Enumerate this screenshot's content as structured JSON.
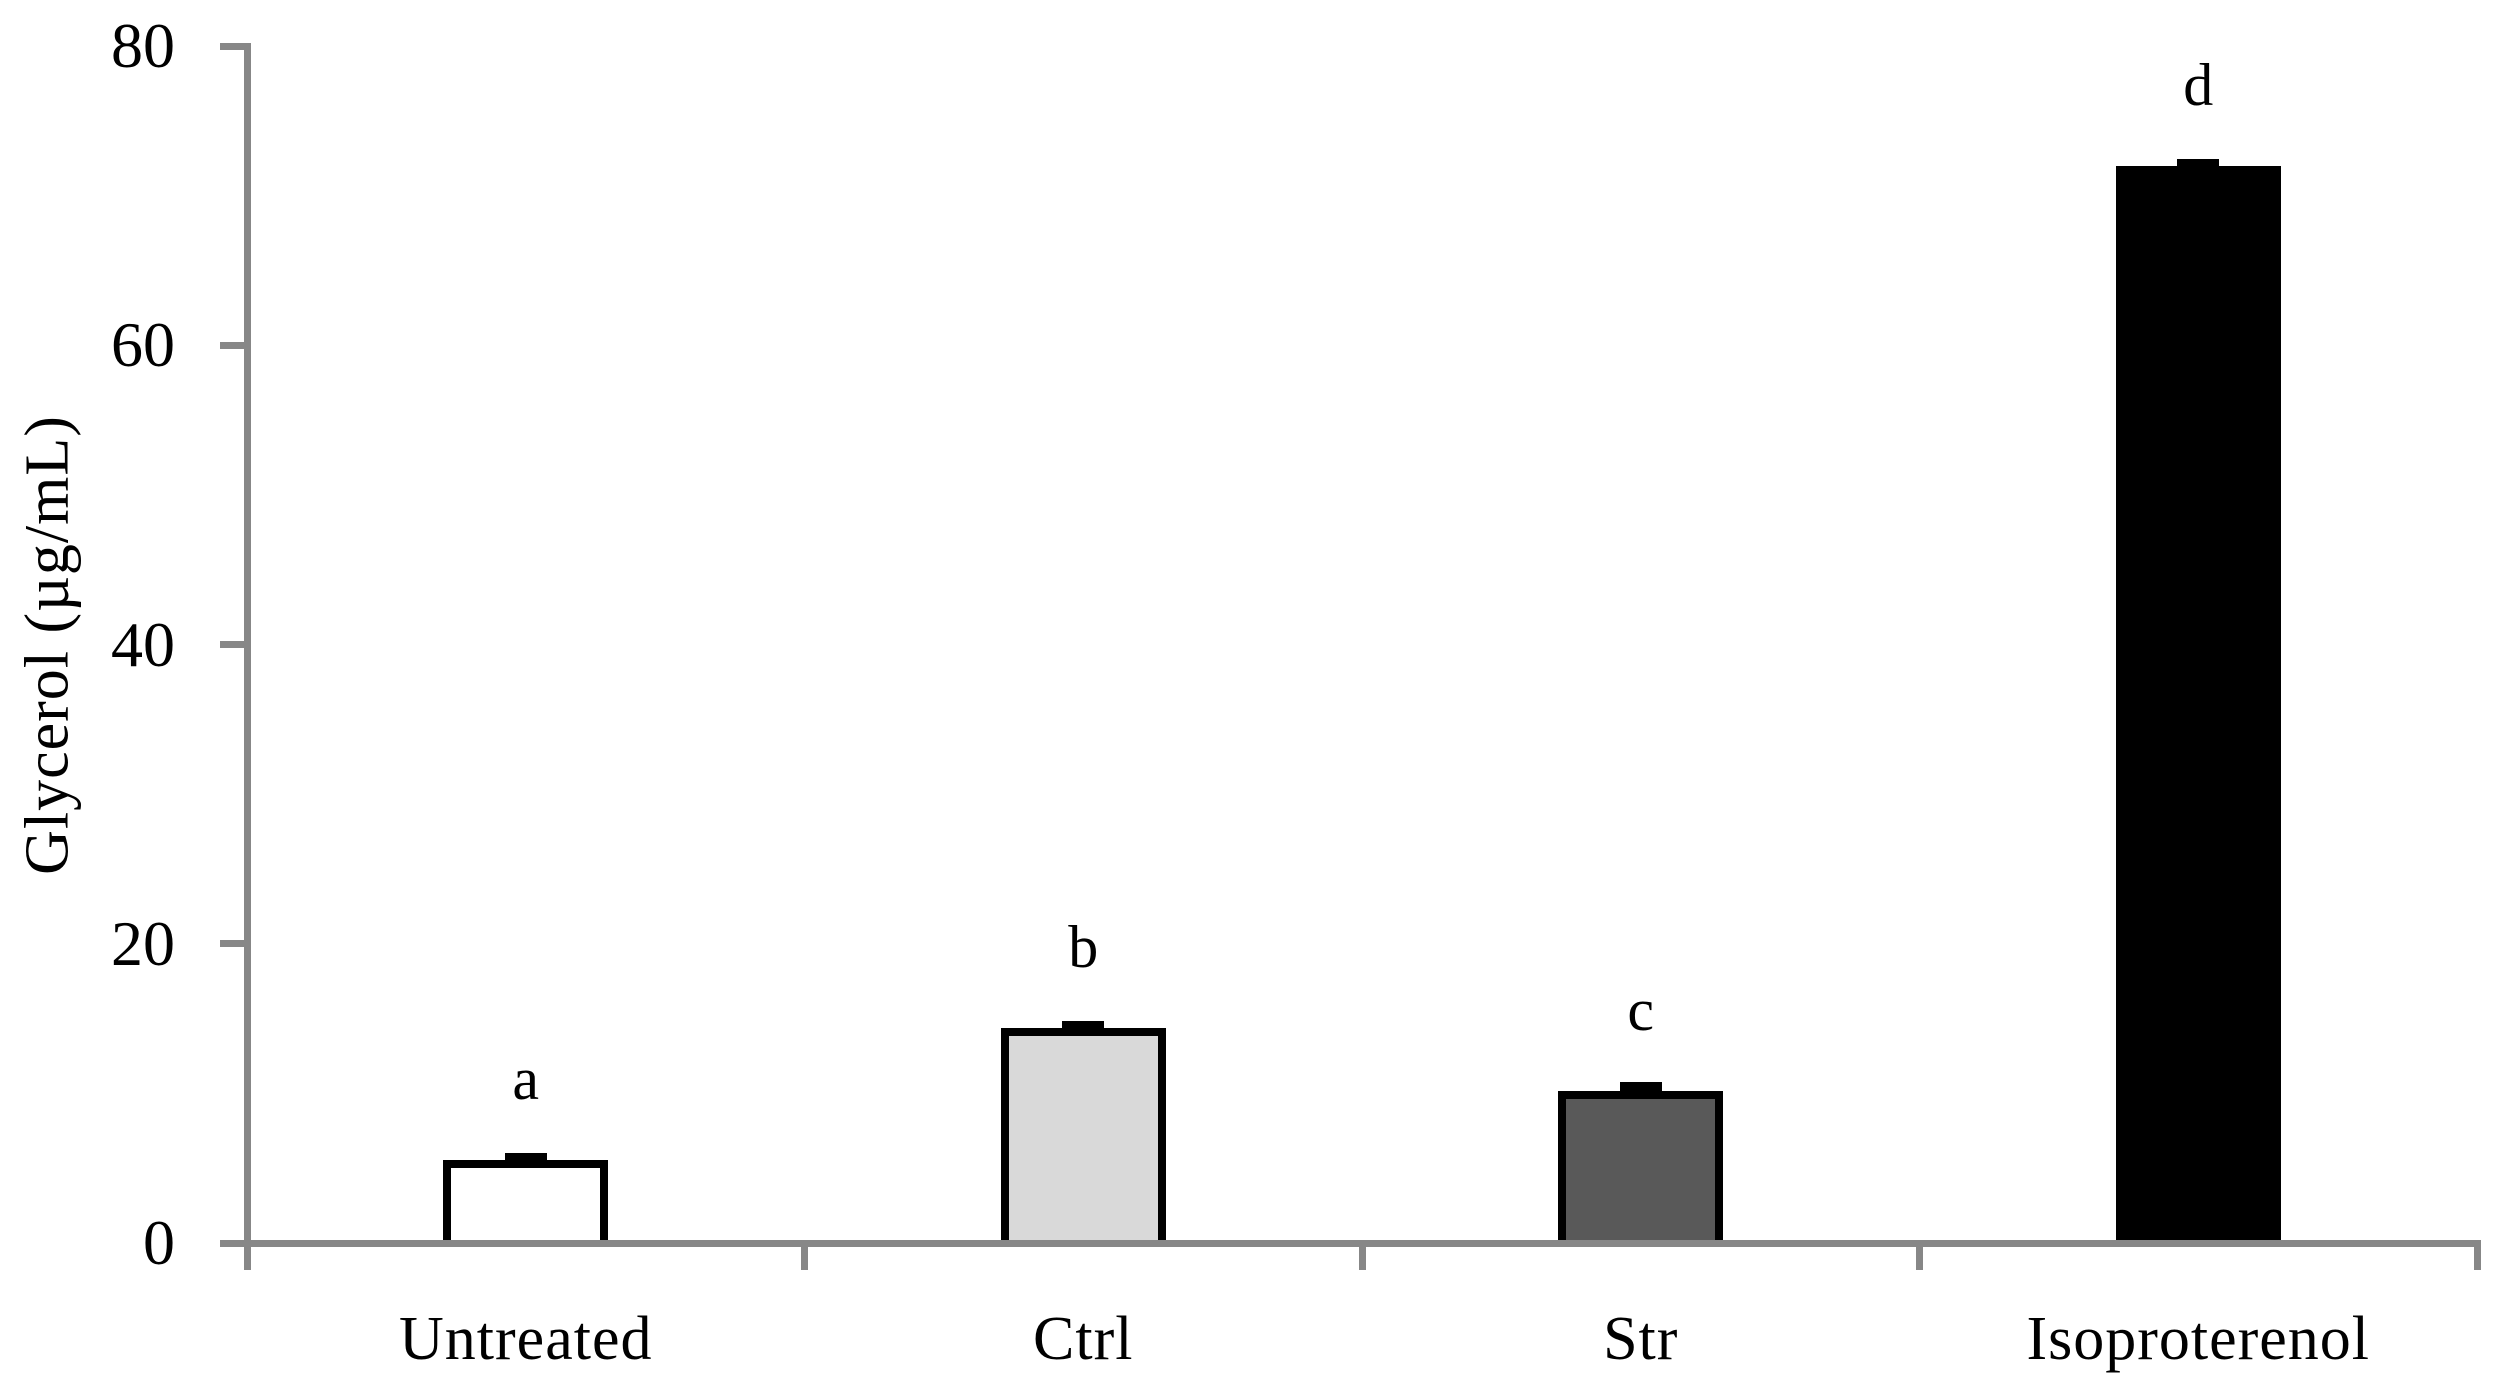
{
  "figure": {
    "background": "#ffffff"
  },
  "chart_data": {
    "type": "bar",
    "title": "",
    "xlabel": "",
    "ylabel": "Glycerol (µg/mL)",
    "categories": [
      "Untreated",
      "Ctrl",
      "Str",
      "Isoproterenol"
    ],
    "values": [
      5.3,
      14.1,
      9.9,
      71.7
    ],
    "errors": [
      0.3,
      0.3,
      0.4,
      0.3
    ],
    "sig_labels": [
      "a",
      "b",
      "c",
      "d"
    ],
    "ylim": [
      0,
      80
    ],
    "yticks": [
      0,
      20,
      40,
      60,
      80
    ],
    "grid": false,
    "legend_position": "none",
    "bar_fill_colors": [
      "#ffffff",
      "#d9d9d9",
      "#595959",
      "#000000"
    ],
    "bar_border_color": "#000000",
    "error_bar_color": "#000000",
    "axis_color": "#878787",
    "text_color": "#000000"
  }
}
